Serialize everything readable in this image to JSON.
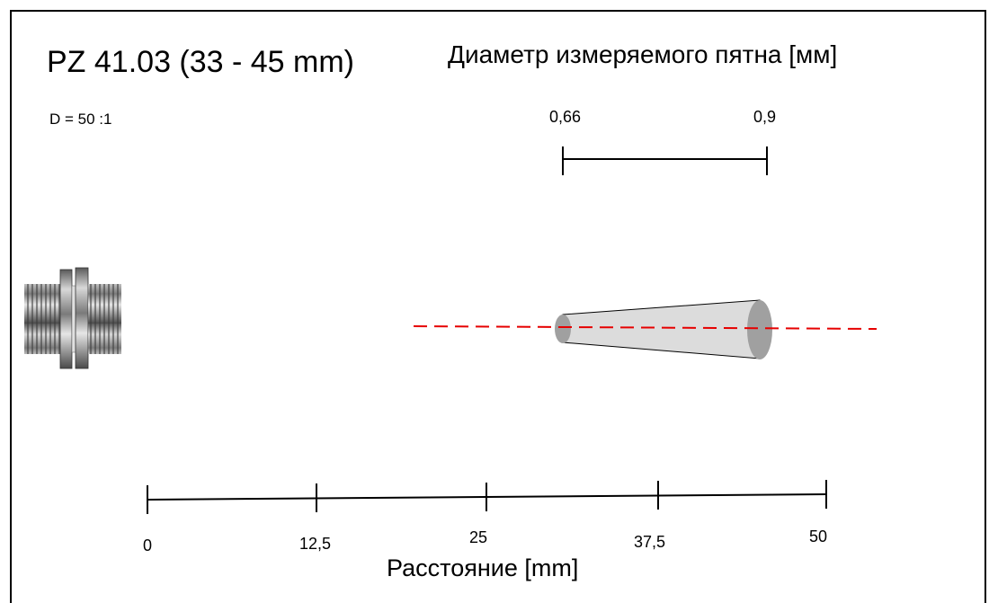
{
  "title": "PZ 41.03 (33 - 45 mm)",
  "subtitle": "Диаметр измеряемого пятна [мм]",
  "ratio": "D = 50 :1",
  "spot": {
    "near_label": "0,66",
    "far_label": "0,9"
  },
  "axis": {
    "title": "Расстояние [mm]",
    "ticks": [
      "0",
      "12,5",
      "25",
      "37,5",
      "50"
    ]
  },
  "colors": {
    "beam": "#e60000",
    "cone_fill": "#dcdcdc",
    "spot_fill": "#a0a0a0"
  }
}
